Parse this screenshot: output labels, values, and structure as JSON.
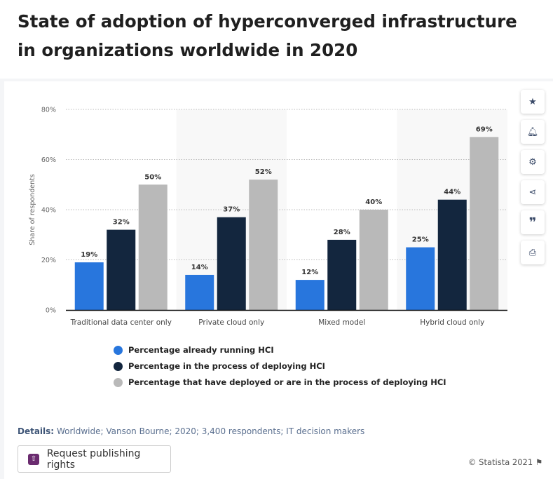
{
  "title": "State of adoption of hyperconverged infrastructure in organizations worldwide in 2020",
  "chart_data": {
    "type": "bar",
    "title": "State of adoption of hyperconverged infrastructure in organizations worldwide in 2020",
    "xlabel": "",
    "ylabel": "Share of respondents",
    "ylim": [
      0,
      80
    ],
    "yticks": [
      "0%",
      "20%",
      "40%",
      "60%",
      "80%"
    ],
    "categories": [
      "Traditional data center only",
      "Private cloud only",
      "Mixed model",
      "Hybrid cloud only"
    ],
    "series": [
      {
        "name": "Percentage already running HCI",
        "color": "#2876dd",
        "values": [
          19,
          14,
          12,
          25
        ]
      },
      {
        "name": "Percentage in the process of deploying HCI",
        "color": "#13263e",
        "values": [
          32,
          37,
          28,
          44
        ]
      },
      {
        "name": "Percentage that have deployed or are in the process of deploying HCI",
        "color": "#b9b9b9",
        "values": [
          50,
          52,
          40,
          69
        ]
      }
    ],
    "grid": true,
    "legend_placement": "bottom"
  },
  "side_buttons": [
    "star-icon",
    "bell-icon",
    "gear-icon",
    "share-icon",
    "quote-icon",
    "print-icon"
  ],
  "details_label": "Details:",
  "details_text": "Worldwide; Vanson Bourne; 2020; 3,400 respondents; IT decision makers",
  "publish_button": "Request publishing rights",
  "copyright": "© Statista 2021"
}
